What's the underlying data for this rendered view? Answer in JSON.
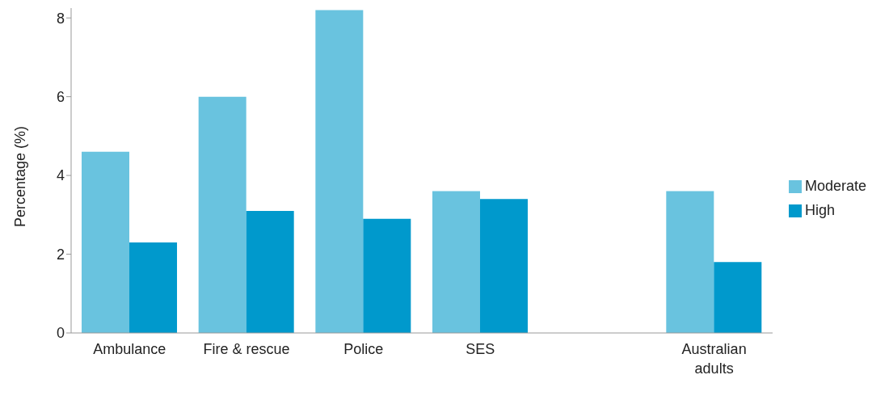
{
  "chart_data": {
    "type": "bar",
    "ylabel": "Percentage (%)",
    "categories": [
      "Ambulance",
      "Fire & rescue",
      "Police",
      "SES",
      null,
      "Australian adults"
    ],
    "series": [
      {
        "name": "Moderate",
        "color": "#69c3df",
        "values": [
          4.6,
          6.0,
          8.2,
          3.6,
          null,
          3.6
        ]
      },
      {
        "name": "High",
        "color": "#0099cc",
        "values": [
          2.3,
          3.1,
          2.9,
          3.4,
          null,
          1.8
        ]
      }
    ],
    "ylim": [
      0,
      8.25
    ],
    "yticks": [
      0,
      2,
      4,
      6,
      8
    ],
    "grid": false,
    "legend": "right"
  }
}
